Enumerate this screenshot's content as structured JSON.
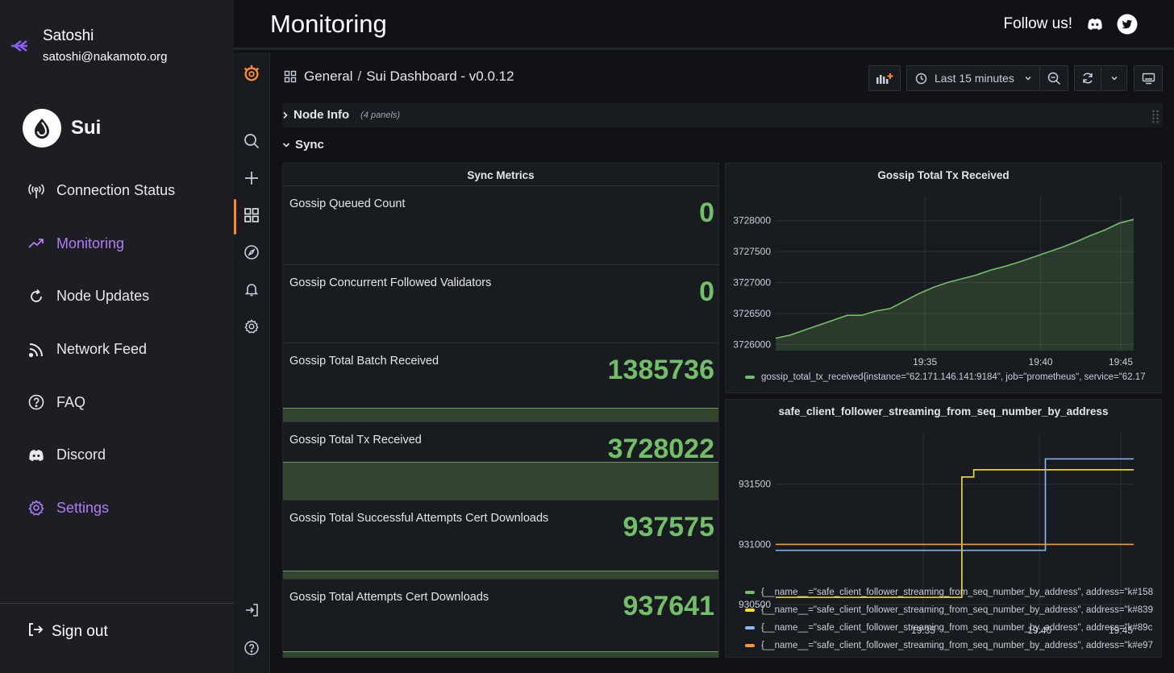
{
  "user": {
    "name": "Satoshi",
    "email": "satoshi@nakamoto.org"
  },
  "brand": {
    "name": "Sui"
  },
  "nav": {
    "items": [
      {
        "label": "Connection Status",
        "icon": "antenna-icon",
        "state": "normal"
      },
      {
        "label": "Monitoring",
        "icon": "trend-icon",
        "state": "active"
      },
      {
        "label": "Node Updates",
        "icon": "refresh-icon",
        "state": "normal"
      },
      {
        "label": "Network Feed",
        "icon": "rss-icon",
        "state": "normal"
      },
      {
        "label": "FAQ",
        "icon": "question-icon",
        "state": "normal"
      },
      {
        "label": "Discord",
        "icon": "discord-icon",
        "state": "normal"
      },
      {
        "label": "Settings",
        "icon": "gear-icon",
        "state": "purple"
      }
    ]
  },
  "signout": {
    "label": "Sign out"
  },
  "header": {
    "title": "Monitoring",
    "follow": "Follow us!"
  },
  "dashboard": {
    "folder": "General",
    "separator": "/",
    "name": "Sui Dashboard - v0.0.12",
    "time_range": "Last 15 minutes"
  },
  "rows": {
    "node_info": {
      "title": "Node Info",
      "count": "(4 panels)"
    },
    "sync": {
      "title": "Sync"
    }
  },
  "sync_metrics": {
    "title": "Sync Metrics",
    "stats": [
      {
        "label": "Gossip Queued Count",
        "value": "0",
        "spark": 0
      },
      {
        "label": "Gossip Concurrent Followed Validators",
        "value": "0",
        "spark": 0
      },
      {
        "label": "Gossip Total Batch Received",
        "value": "1385736",
        "spark": 0.18
      },
      {
        "label": "Gossip Total Tx Received",
        "value": "3728022",
        "spark": 0.49
      },
      {
        "label": "Gossip Total Successful Attempts Cert Downloads",
        "value": "937575",
        "spark": 0.1
      },
      {
        "label": "Gossip Total Attempts Cert Downloads",
        "value": "937641",
        "spark": 0.08
      }
    ]
  },
  "colors": {
    "accent": "#b07cf4",
    "green": "#73bf69",
    "yellow": "#fade2a",
    "blue": "#8ab8ff",
    "orange": "#ff9830",
    "grafana_orange": "#ff8833"
  },
  "chart_data": [
    {
      "type": "area",
      "title": "Gossip Total Tx Received",
      "x_ticks": [
        "19:35",
        "19:40",
        "19:45"
      ],
      "y_ticks": [
        "3726000",
        "3726500",
        "3727000",
        "3727500",
        "3728000"
      ],
      "ylim": [
        3725900,
        3728400
      ],
      "xlim": [
        0,
        15
      ],
      "series": [
        {
          "name": "gossip_total_tx_received{instance=\"62.171.146.141:9184\", job=\"prometheus\", service=\"62.17",
          "color": "#73bf69",
          "x": [
            0.0,
            0.6,
            1.2,
            1.8,
            2.4,
            3.0,
            3.6,
            4.2,
            4.8,
            5.4,
            6.0,
            6.6,
            7.2,
            7.8,
            8.4,
            9.0,
            9.6,
            10.2,
            10.8,
            11.4,
            12.0,
            12.6,
            13.2,
            13.8,
            14.4,
            15.0
          ],
          "y": [
            3726100,
            3726150,
            3726230,
            3726310,
            3726390,
            3726470,
            3726470,
            3726540,
            3726580,
            3726700,
            3726820,
            3726920,
            3727000,
            3727060,
            3727120,
            3727200,
            3727260,
            3727330,
            3727410,
            3727490,
            3727570,
            3727660,
            3727760,
            3727850,
            3727960,
            3728020
          ]
        }
      ]
    },
    {
      "type": "line",
      "title": "safe_client_follower_streaming_from_seq_number_by_address",
      "x_ticks": [
        "19:35",
        "19:40",
        "19:45"
      ],
      "y_ticks": [
        "930500",
        "931000",
        "931500"
      ],
      "ylim": [
        930380,
        931920
      ],
      "xlim": [
        0,
        15
      ],
      "series": [
        {
          "name": "{__name__=\"safe_client_follower_streaming_from_seq_number_by_address\", address=\"k#158",
          "color": "#73bf69",
          "x": [],
          "y": []
        },
        {
          "name": "{__name__=\"safe_client_follower_streaming_from_seq_number_by_address\", address=\"k#839",
          "color": "#fade2a",
          "x": [
            0,
            7.7,
            7.8,
            8.1,
            8.3,
            15
          ],
          "y": [
            930560,
            930560,
            931560,
            931560,
            931620,
            931620
          ]
        },
        {
          "name": "{__name__=\"safe_client_follower_streaming_from_seq_number_by_address\", address=\"k#89c",
          "color": "#8ab8ff",
          "x": [
            0,
            11.1,
            11.3,
            15
          ],
          "y": [
            930950,
            930950,
            931710,
            931710
          ]
        },
        {
          "name": "{__name__=\"safe_client_follower_streaming_from_seq_number_by_address\", address=\"k#e97",
          "color": "#ff9830",
          "x": [
            0,
            15
          ],
          "y": [
            931000,
            931000
          ]
        }
      ]
    }
  ]
}
